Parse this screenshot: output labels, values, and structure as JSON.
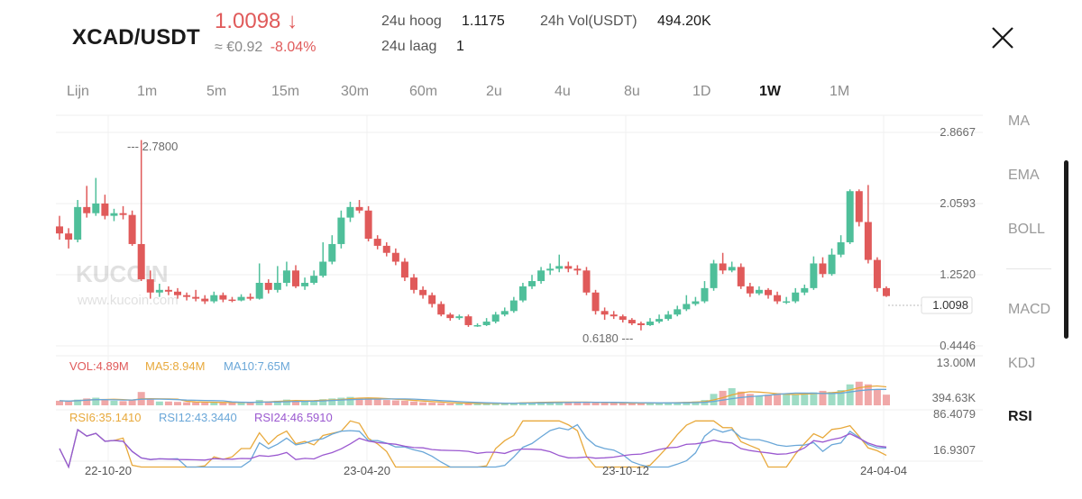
{
  "header": {
    "pair": "XCAD/USDT",
    "price": "1.0098",
    "price_arrow": "↓",
    "approx_fiat": "≈ €0.92",
    "change_pct": "-8.04%",
    "high_label": "24u hoog",
    "high_value": "1.1175",
    "low_label": "24u laag",
    "low_value": "1",
    "vol_label": "24h Vol(USDT)",
    "vol_value": "494.20K",
    "close_icon": "close-icon"
  },
  "tabs": [
    "Lijn",
    "1m",
    "5m",
    "15m",
    "30m",
    "60m",
    "2u",
    "4u",
    "8u",
    "1D",
    "1W",
    "1M"
  ],
  "active_tab": "1W",
  "indicators": {
    "main": [
      "MA",
      "EMA",
      "BOLL"
    ],
    "sub": [
      "MACD",
      "KDJ",
      "RSI"
    ],
    "active": "RSI"
  },
  "colors": {
    "up": "#4fbf9a",
    "down": "#e05a5a",
    "ma5": "#e8a93c",
    "ma10": "#6aa7d8",
    "rsi24": "#9b59d0"
  },
  "chart_data": {
    "type": "candlestick",
    "price_axis_ticks": [
      "2.8667",
      "2.0593",
      "1.2520",
      "0.4446"
    ],
    "last_price_label": "1.0098",
    "max_marker": "2.7800",
    "min_marker": "0.6180",
    "x_ticks": [
      "22-10-20",
      "23-04-20",
      "23-10-12",
      "24-04-04"
    ],
    "ylim": [
      0.4446,
      2.8667
    ],
    "candles": [
      [
        1.8,
        1.72,
        1.92,
        1.65
      ],
      [
        1.72,
        1.65,
        1.78,
        1.55
      ],
      [
        1.65,
        2.02,
        2.1,
        1.62
      ],
      [
        2.02,
        1.95,
        2.26,
        1.9
      ],
      [
        1.95,
        2.06,
        2.35,
        1.92
      ],
      [
        2.06,
        1.92,
        2.16,
        1.88
      ],
      [
        1.92,
        1.95,
        2.0,
        1.86
      ],
      [
        1.95,
        1.93,
        2.03,
        1.88
      ],
      [
        1.93,
        1.6,
        1.98,
        1.58
      ],
      [
        1.6,
        1.2,
        2.78,
        1.18
      ],
      [
        1.2,
        1.05,
        1.3,
        0.98
      ],
      [
        1.05,
        1.08,
        1.15,
        1.0
      ],
      [
        1.08,
        1.06,
        1.12,
        1.02
      ],
      [
        1.06,
        1.02,
        1.1,
        0.98
      ],
      [
        1.02,
        1.0,
        1.05,
        0.96
      ],
      [
        1.0,
        0.98,
        1.08,
        0.95
      ],
      [
        0.98,
        0.95,
        1.02,
        0.92
      ],
      [
        0.95,
        1.02,
        1.06,
        0.93
      ],
      [
        1.02,
        0.97,
        1.05,
        0.94
      ],
      [
        0.97,
        0.96,
        1.0,
        0.94
      ],
      [
        0.96,
        1.0,
        1.03,
        0.95
      ],
      [
        1.0,
        0.98,
        1.04,
        0.96
      ],
      [
        0.98,
        1.16,
        1.38,
        0.97
      ],
      [
        1.16,
        1.08,
        1.2,
        1.04
      ],
      [
        1.08,
        1.16,
        1.35,
        1.05
      ],
      [
        1.16,
        1.3,
        1.4,
        1.12
      ],
      [
        1.3,
        1.12,
        1.36,
        1.1
      ],
      [
        1.12,
        1.16,
        1.22,
        1.08
      ],
      [
        1.16,
        1.24,
        1.3,
        1.14
      ],
      [
        1.24,
        1.4,
        1.62,
        1.22
      ],
      [
        1.4,
        1.6,
        1.7,
        1.37
      ],
      [
        1.6,
        1.9,
        1.98,
        1.55
      ],
      [
        1.9,
        2.02,
        2.08,
        1.85
      ],
      [
        2.02,
        1.98,
        2.1,
        1.95
      ],
      [
        1.98,
        1.66,
        2.03,
        1.63
      ],
      [
        1.66,
        1.58,
        1.7,
        1.54
      ],
      [
        1.58,
        1.5,
        1.62,
        1.46
      ],
      [
        1.5,
        1.4,
        1.55,
        1.36
      ],
      [
        1.4,
        1.22,
        1.44,
        1.18
      ],
      [
        1.22,
        1.08,
        1.26,
        1.04
      ],
      [
        1.08,
        1.02,
        1.12,
        0.98
      ],
      [
        1.02,
        0.92,
        1.05,
        0.88
      ],
      [
        0.92,
        0.8,
        0.95,
        0.78
      ],
      [
        0.8,
        0.76,
        0.82,
        0.73
      ],
      [
        0.76,
        0.78,
        0.8,
        0.74
      ],
      [
        0.78,
        0.68,
        0.8,
        0.66
      ],
      [
        0.68,
        0.68,
        0.7,
        0.66
      ],
      [
        0.68,
        0.72,
        0.76,
        0.67
      ],
      [
        0.72,
        0.8,
        0.83,
        0.7
      ],
      [
        0.8,
        0.84,
        0.88,
        0.78
      ],
      [
        0.84,
        0.96,
        1.0,
        0.82
      ],
      [
        0.96,
        1.12,
        1.16,
        0.94
      ],
      [
        1.12,
        1.18,
        1.25,
        1.09
      ],
      [
        1.18,
        1.3,
        1.34,
        1.15
      ],
      [
        1.3,
        1.32,
        1.38,
        1.25
      ],
      [
        1.32,
        1.35,
        1.48,
        1.28
      ],
      [
        1.35,
        1.32,
        1.4,
        1.28
      ],
      [
        1.32,
        1.3,
        1.36,
        1.25
      ],
      [
        1.3,
        1.05,
        1.34,
        1.02
      ],
      [
        1.05,
        0.84,
        1.08,
        0.8
      ],
      [
        0.84,
        0.8,
        0.88,
        0.74
      ],
      [
        0.8,
        0.78,
        0.84,
        0.75
      ],
      [
        0.78,
        0.74,
        0.8,
        0.71
      ],
      [
        0.74,
        0.7,
        0.76,
        0.68
      ],
      [
        0.7,
        0.68,
        0.72,
        0.62
      ],
      [
        0.68,
        0.72,
        0.76,
        0.67
      ],
      [
        0.72,
        0.75,
        0.8,
        0.7
      ],
      [
        0.75,
        0.8,
        0.84,
        0.73
      ],
      [
        0.8,
        0.86,
        0.9,
        0.78
      ],
      [
        0.86,
        0.92,
        1.02,
        0.84
      ],
      [
        0.92,
        0.95,
        1.0,
        0.9
      ],
      [
        0.95,
        1.1,
        1.18,
        0.93
      ],
      [
        1.1,
        1.38,
        1.42,
        1.07
      ],
      [
        1.38,
        1.3,
        1.5,
        1.26
      ],
      [
        1.3,
        1.34,
        1.4,
        1.28
      ],
      [
        1.34,
        1.12,
        1.38,
        1.09
      ],
      [
        1.12,
        1.04,
        1.16,
        1.0
      ],
      [
        1.04,
        1.08,
        1.12,
        1.02
      ],
      [
        1.08,
        1.02,
        1.1,
        0.98
      ],
      [
        1.02,
        0.95,
        1.06,
        0.92
      ],
      [
        0.95,
        0.95,
        1.0,
        0.92
      ],
      [
        0.95,
        1.05,
        1.1,
        0.93
      ],
      [
        1.05,
        1.1,
        1.14,
        1.02
      ],
      [
        1.1,
        1.38,
        1.46,
        1.08
      ],
      [
        1.38,
        1.26,
        1.45,
        1.22
      ],
      [
        1.26,
        1.48,
        1.55,
        1.24
      ],
      [
        1.48,
        1.62,
        1.7,
        1.45
      ],
      [
        1.62,
        2.2,
        2.22,
        1.6
      ],
      [
        2.2,
        1.85,
        2.22,
        1.8
      ],
      [
        1.85,
        1.42,
        2.27,
        1.38
      ],
      [
        1.42,
        1.1,
        1.45,
        1.06
      ],
      [
        1.1,
        1.01,
        1.12,
        1.0
      ]
    ],
    "volume_legend": {
      "vol": "VOL:4.89M",
      "ma5": "MA5:8.94M",
      "ma10": "MA10:7.65M"
    },
    "volume_axis_ticks": [
      "13.00M",
      "394.63K"
    ],
    "volume": [
      1.2,
      1.0,
      1.5,
      1.8,
      2.0,
      1.4,
      1.2,
      1.1,
      1.3,
      3.5,
      1.6,
      1.0,
      1.0,
      0.9,
      0.8,
      0.8,
      0.7,
      0.8,
      0.7,
      0.7,
      0.8,
      0.7,
      1.4,
      1.0,
      1.2,
      1.5,
      1.3,
      1.0,
      1.2,
      1.6,
      1.8,
      2.0,
      2.2,
      1.8,
      1.9,
      1.6,
      1.4,
      1.3,
      1.2,
      1.0,
      0.8,
      0.7,
      0.6,
      0.5,
      0.5,
      0.5,
      0.4,
      0.5,
      0.6,
      0.6,
      0.7,
      0.8,
      0.8,
      0.9,
      0.9,
      0.9,
      0.8,
      0.8,
      0.8,
      0.7,
      0.6,
      0.6,
      0.6,
      0.5,
      0.6,
      0.6,
      0.7,
      0.8,
      0.8,
      0.9,
      1.0,
      1.4,
      3.0,
      3.8,
      4.5,
      3.6,
      3.0,
      2.5,
      2.8,
      3.2,
      3.0,
      2.8,
      3.0,
      3.4,
      3.8,
      3.5,
      4.0,
      5.5,
      6.2,
      5.5,
      4.2,
      2.8
    ],
    "rsi_legend": {
      "rsi6": "RSI6:35.1410",
      "rsi12": "RSI12:43.3440",
      "rsi24": "RSI24:46.5910"
    },
    "rsi_axis_ticks": [
      "86.4079",
      "16.9307"
    ]
  },
  "watermark": {
    "brand": "KUCOIN",
    "url": "www.kucoin.com"
  }
}
